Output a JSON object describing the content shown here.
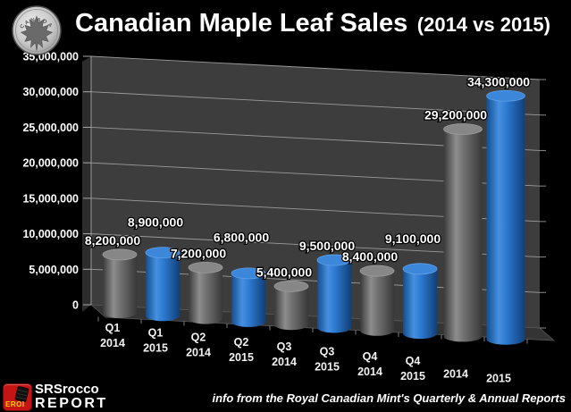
{
  "header": {
    "title_main": "Canadian Maple Leaf Sales",
    "title_suffix": "(2014 vs 2015)",
    "coin_icon": "silver-maple-leaf-coin",
    "coin_text": "CANADA"
  },
  "chart_data": {
    "type": "bar",
    "style": "3d-cylinder",
    "title": "Canadian Maple Leaf Sales (2014 vs 2015)",
    "categories": [
      "Q1 2014",
      "Q1 2015",
      "Q2 2014",
      "Q2 2015",
      "Q3 2014",
      "Q3 2015",
      "Q4 2014",
      "Q4 2015",
      "2014",
      "2015"
    ],
    "values": [
      8200000,
      8900000,
      7200000,
      6800000,
      5400000,
      9500000,
      8400000,
      9100000,
      29200000,
      34300000
    ],
    "value_labels": [
      "8,200,000",
      "8,900,000",
      "7,200,000",
      "6,800,000",
      "5,400,000",
      "9,500,000",
      "8,400,000",
      "9,100,000",
      "29,200,000",
      "34,300,000"
    ],
    "series": [
      {
        "name": "2014",
        "color": "#6e6e6e"
      },
      {
        "name": "2015",
        "color": "#2a77cc"
      }
    ],
    "bar_series": [
      0,
      1,
      0,
      1,
      0,
      1,
      0,
      1,
      0,
      1
    ],
    "ylim": [
      0,
      35000000
    ],
    "yticks": [
      0,
      5000000,
      10000000,
      15000000,
      20000000,
      25000000,
      30000000,
      35000000
    ],
    "ytick_labels": [
      "0",
      "5,000,000",
      "10,000,000",
      "15,000,000",
      "20,000,000",
      "25,000,000",
      "30,000,000",
      "35,000,000"
    ],
    "grid": true,
    "legend": false,
    "background": "#000000",
    "wall_color": "#3d3d3d",
    "floor_color": "#343434",
    "gridline_color": "#9b9b9b",
    "label_color": "#ffffff"
  },
  "footer": {
    "source_note": "info from the Royal Canadian Mint's Quarterly & Annual Reports"
  },
  "logo": {
    "badge_text": "EROI",
    "name": "SRSrocco",
    "word": "REPORT"
  }
}
